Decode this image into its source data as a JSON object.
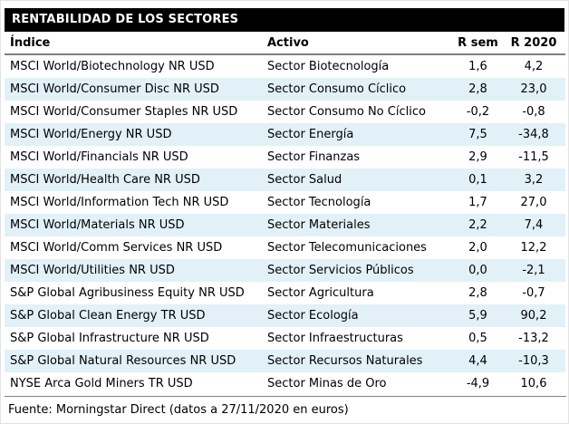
{
  "title": "RENTABILIDAD DE LOS SECTORES",
  "footer": {
    "source": "Fuente: Morningstar Direct (datos a 27/11/2020 en euros)"
  },
  "colors": {
    "title_bg": "#000000",
    "title_text": "#ffffff",
    "row_stripe": "#e2f1f8",
    "rule": "#808080",
    "text": "#000000"
  },
  "chart_data": {
    "type": "table",
    "title": "RENTABILIDAD DE LOS SECTORES",
    "columns": [
      "Índice",
      "Activo",
      "R sem",
      "R 2020"
    ],
    "rows": [
      [
        "MSCI World/Biotechnology NR USD",
        "Sector Biotecnología",
        "1,6",
        "4,2"
      ],
      [
        "MSCI World/Consumer Disc NR USD",
        "Sector Consumo Cíclico",
        "2,8",
        "23,0"
      ],
      [
        "MSCI World/Consumer Staples NR USD",
        "Sector Consumo No Cíclico",
        "-0,2",
        "-0,8"
      ],
      [
        "MSCI World/Energy NR USD",
        "Sector Energía",
        "7,5",
        "-34,8"
      ],
      [
        "MSCI World/Financials NR USD",
        "Sector Finanzas",
        "2,9",
        "-11,5"
      ],
      [
        "MSCI World/Health Care NR USD",
        "Sector Salud",
        "0,1",
        "3,2"
      ],
      [
        "MSCI World/Information Tech NR USD",
        "Sector Tecnología",
        "1,7",
        "27,0"
      ],
      [
        "MSCI World/Materials NR USD",
        "Sector Materiales",
        "2,2",
        "7,4"
      ],
      [
        "MSCI World/Comm Services NR USD",
        "Sector Telecomunicaciones",
        "2,0",
        "12,2"
      ],
      [
        "MSCI World/Utilities NR USD",
        "Sector Servicios Públicos",
        "0,0",
        "-2,1"
      ],
      [
        "S&P Global Agribusiness Equity NR USD",
        "Sector Agricultura",
        "2,8",
        "-0,7"
      ],
      [
        "S&P Global Clean Energy TR USD",
        "Sector Ecología",
        "5,9",
        "90,2"
      ],
      [
        "S&P Global Infrastructure NR USD",
        "Sector Infraestructuras",
        "0,5",
        "-13,2"
      ],
      [
        "S&P Global Natural Resources NR USD",
        "Sector Recursos Naturales",
        "4,4",
        "-10,3"
      ],
      [
        "NYSE Arca Gold Miners TR USD",
        "Sector Minas de Oro",
        "-4,9",
        "10,6"
      ]
    ],
    "source": "Fuente: Morningstar Direct (datos a 27/11/2020 en euros)",
    "layout": {
      "striped_rows": "even rows (2,4,6,...) pale blue",
      "numeric_alignment": "center",
      "grid": "off",
      "header_rule_color": "#808080"
    }
  }
}
